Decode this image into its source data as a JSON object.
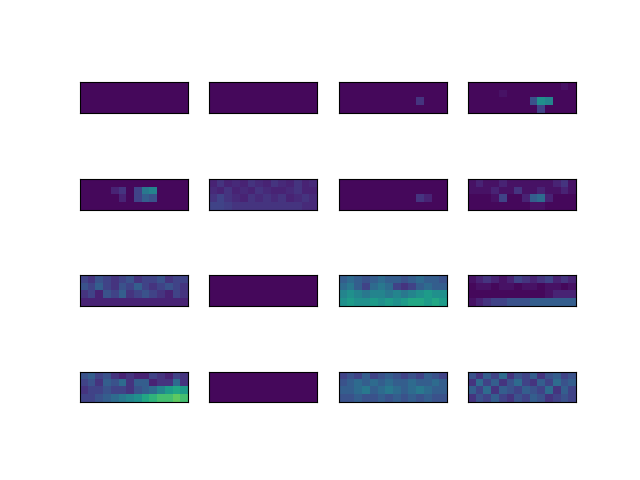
{
  "chart_data": [
    {
      "type": "heatmap",
      "tick_labels": false,
      "zlim": [
        0,
        1
      ],
      "cells": [
        [
          0.02,
          0.02,
          0.02,
          0.02,
          0.02,
          0.02,
          0.02,
          0.02,
          0.02,
          0.02,
          0.02,
          0.02,
          0.02,
          0.02
        ],
        [
          0.02,
          0.02,
          0.02,
          0.02,
          0.02,
          0.02,
          0.02,
          0.02,
          0.02,
          0.02,
          0.02,
          0.02,
          0.02,
          0.02
        ],
        [
          0.02,
          0.02,
          0.02,
          0.02,
          0.02,
          0.02,
          0.02,
          0.02,
          0.02,
          0.02,
          0.02,
          0.02,
          0.02,
          0.02
        ],
        [
          0.02,
          0.02,
          0.02,
          0.02,
          0.02,
          0.02,
          0.02,
          0.02,
          0.02,
          0.02,
          0.02,
          0.02,
          0.02,
          0.02
        ]
      ]
    },
    {
      "type": "heatmap",
      "tick_labels": false,
      "zlim": [
        0,
        1
      ],
      "cells": [
        [
          0.02,
          0.02,
          0.02,
          0.02,
          0.02,
          0.02,
          0.02,
          0.02,
          0.02,
          0.02,
          0.02,
          0.02,
          0.02,
          0.02
        ],
        [
          0.02,
          0.02,
          0.02,
          0.02,
          0.02,
          0.02,
          0.02,
          0.02,
          0.02,
          0.02,
          0.02,
          0.02,
          0.02,
          0.02
        ],
        [
          0.02,
          0.02,
          0.02,
          0.02,
          0.02,
          0.02,
          0.02,
          0.02,
          0.02,
          0.02,
          0.02,
          0.02,
          0.02,
          0.02
        ],
        [
          0.02,
          0.02,
          0.02,
          0.02,
          0.02,
          0.02,
          0.02,
          0.02,
          0.02,
          0.02,
          0.02,
          0.02,
          0.02,
          0.02
        ]
      ]
    },
    {
      "type": "heatmap",
      "tick_labels": false,
      "zlim": [
        0,
        1
      ],
      "cells": [
        [
          0.02,
          0.02,
          0.02,
          0.02,
          0.02,
          0.02,
          0.02,
          0.02,
          0.02,
          0.02,
          0.02,
          0.02,
          0.02,
          0.02
        ],
        [
          0.02,
          0.02,
          0.02,
          0.02,
          0.02,
          0.02,
          0.02,
          0.02,
          0.02,
          0.02,
          0.02,
          0.02,
          0.02,
          0.02
        ],
        [
          0.02,
          0.02,
          0.02,
          0.02,
          0.02,
          0.02,
          0.02,
          0.02,
          0.02,
          0.02,
          0.15,
          0.02,
          0.02,
          0.02
        ],
        [
          0.02,
          0.02,
          0.02,
          0.02,
          0.02,
          0.02,
          0.02,
          0.02,
          0.02,
          0.02,
          0.02,
          0.02,
          0.02,
          0.02
        ]
      ]
    },
    {
      "type": "heatmap",
      "tick_labels": false,
      "zlim": [
        0,
        1
      ],
      "cells": [
        [
          0.02,
          0.02,
          0.02,
          0.02,
          0.02,
          0.02,
          0.02,
          0.02,
          0.02,
          0.02,
          0.02,
          0.02,
          0.05,
          0.02
        ],
        [
          0.02,
          0.02,
          0.02,
          0.02,
          0.05,
          0.02,
          0.02,
          0.02,
          0.02,
          0.02,
          0.02,
          0.02,
          0.02,
          0.02
        ],
        [
          0.02,
          0.02,
          0.02,
          0.02,
          0.02,
          0.02,
          0.02,
          0.02,
          0.25,
          0.5,
          0.45,
          0.02,
          0.02,
          0.02
        ],
        [
          0.02,
          0.02,
          0.02,
          0.02,
          0.02,
          0.02,
          0.02,
          0.02,
          0.02,
          0.2,
          0.02,
          0.02,
          0.02,
          0.02
        ]
      ]
    },
    {
      "type": "heatmap",
      "tick_labels": false,
      "zlim": [
        0,
        1
      ],
      "cells": [
        [
          0.02,
          0.02,
          0.02,
          0.02,
          0.02,
          0.02,
          0.02,
          0.02,
          0.02,
          0.02,
          0.02,
          0.02,
          0.02,
          0.02
        ],
        [
          0.02,
          0.02,
          0.02,
          0.02,
          0.1,
          0.15,
          0.02,
          0.2,
          0.4,
          0.45,
          0.02,
          0.02,
          0.02,
          0.02
        ],
        [
          0.02,
          0.02,
          0.02,
          0.02,
          0.02,
          0.1,
          0.02,
          0.2,
          0.3,
          0.25,
          0.02,
          0.02,
          0.02,
          0.02
        ],
        [
          0.02,
          0.02,
          0.02,
          0.02,
          0.02,
          0.02,
          0.02,
          0.02,
          0.02,
          0.02,
          0.02,
          0.02,
          0.02,
          0.02
        ]
      ]
    },
    {
      "type": "heatmap",
      "tick_labels": false,
      "zlim": [
        0,
        1
      ],
      "cells": [
        [
          0.1,
          0.15,
          0.1,
          0.12,
          0.1,
          0.15,
          0.12,
          0.1,
          0.15,
          0.12,
          0.1,
          0.15,
          0.1,
          0.12
        ],
        [
          0.12,
          0.1,
          0.15,
          0.1,
          0.12,
          0.1,
          0.15,
          0.12,
          0.1,
          0.1,
          0.12,
          0.15,
          0.1,
          0.1
        ],
        [
          0.15,
          0.2,
          0.15,
          0.12,
          0.1,
          0.15,
          0.12,
          0.15,
          0.12,
          0.15,
          0.1,
          0.12,
          0.15,
          0.12
        ],
        [
          0.2,
          0.2,
          0.18,
          0.15,
          0.15,
          0.15,
          0.15,
          0.15,
          0.15,
          0.15,
          0.15,
          0.15,
          0.12,
          0.12
        ]
      ]
    },
    {
      "type": "heatmap",
      "tick_labels": false,
      "zlim": [
        0,
        1
      ],
      "cells": [
        [
          0.02,
          0.02,
          0.02,
          0.02,
          0.02,
          0.02,
          0.02,
          0.02,
          0.02,
          0.02,
          0.02,
          0.02,
          0.02,
          0.02
        ],
        [
          0.02,
          0.02,
          0.02,
          0.02,
          0.02,
          0.02,
          0.02,
          0.02,
          0.02,
          0.02,
          0.02,
          0.02,
          0.02,
          0.02
        ],
        [
          0.02,
          0.02,
          0.02,
          0.02,
          0.02,
          0.02,
          0.02,
          0.02,
          0.02,
          0.02,
          0.15,
          0.1,
          0.02,
          0.02
        ],
        [
          0.02,
          0.02,
          0.02,
          0.02,
          0.02,
          0.02,
          0.02,
          0.02,
          0.02,
          0.02,
          0.02,
          0.02,
          0.02,
          0.02
        ]
      ]
    },
    {
      "type": "heatmap",
      "tick_labels": false,
      "zlim": [
        0,
        1
      ],
      "cells": [
        [
          0.05,
          0.1,
          0.05,
          0.05,
          0.1,
          0.05,
          0.05,
          0.05,
          0.05,
          0.05,
          0.05,
          0.1,
          0.15,
          0.05
        ],
        [
          0.05,
          0.05,
          0.05,
          0.1,
          0.05,
          0.05,
          0.15,
          0.05,
          0.05,
          0.1,
          0.05,
          0.05,
          0.1,
          0.05
        ],
        [
          0.02,
          0.02,
          0.02,
          0.05,
          0.2,
          0.02,
          0.02,
          0.1,
          0.3,
          0.35,
          0.1,
          0.02,
          0.02,
          0.02
        ],
        [
          0.02,
          0.02,
          0.02,
          0.02,
          0.02,
          0.02,
          0.02,
          0.02,
          0.05,
          0.05,
          0.02,
          0.02,
          0.02,
          0.02
        ]
      ]
    },
    {
      "type": "heatmap",
      "tick_labels": false,
      "zlim": [
        0,
        1
      ],
      "cells": [
        [
          0.2,
          0.15,
          0.25,
          0.2,
          0.15,
          0.2,
          0.25,
          0.15,
          0.2,
          0.2,
          0.25,
          0.15,
          0.2,
          0.2
        ],
        [
          0.25,
          0.2,
          0.3,
          0.2,
          0.15,
          0.25,
          0.2,
          0.3,
          0.2,
          0.15,
          0.2,
          0.25,
          0.2,
          0.15
        ],
        [
          0.15,
          0.2,
          0.1,
          0.25,
          0.2,
          0.3,
          0.15,
          0.2,
          0.25,
          0.2,
          0.15,
          0.1,
          0.2,
          0.15
        ],
        [
          0.1,
          0.1,
          0.1,
          0.1,
          0.1,
          0.1,
          0.1,
          0.1,
          0.1,
          0.1,
          0.1,
          0.1,
          0.1,
          0.1
        ]
      ]
    },
    {
      "type": "heatmap",
      "tick_labels": false,
      "zlim": [
        0,
        1
      ],
      "cells": [
        [
          0.02,
          0.02,
          0.02,
          0.02,
          0.02,
          0.02,
          0.02,
          0.02,
          0.02,
          0.02,
          0.02,
          0.02,
          0.02,
          0.02
        ],
        [
          0.02,
          0.02,
          0.02,
          0.02,
          0.02,
          0.02,
          0.02,
          0.02,
          0.02,
          0.02,
          0.02,
          0.02,
          0.02,
          0.02
        ],
        [
          0.02,
          0.02,
          0.02,
          0.02,
          0.02,
          0.02,
          0.02,
          0.02,
          0.02,
          0.02,
          0.02,
          0.02,
          0.02,
          0.02
        ],
        [
          0.02,
          0.02,
          0.02,
          0.02,
          0.02,
          0.02,
          0.02,
          0.02,
          0.02,
          0.02,
          0.02,
          0.02,
          0.02,
          0.02
        ]
      ]
    },
    {
      "type": "heatmap",
      "tick_labels": false,
      "zlim": [
        0,
        1
      ],
      "cells": [
        [
          0.3,
          0.35,
          0.3,
          0.25,
          0.3,
          0.35,
          0.3,
          0.3,
          0.25,
          0.3,
          0.35,
          0.3,
          0.3,
          0.25
        ],
        [
          0.35,
          0.4,
          0.3,
          0.2,
          0.35,
          0.4,
          0.35,
          0.2,
          0.15,
          0.2,
          0.3,
          0.35,
          0.3,
          0.3
        ],
        [
          0.45,
          0.5,
          0.45,
          0.4,
          0.45,
          0.45,
          0.4,
          0.45,
          0.4,
          0.45,
          0.5,
          0.55,
          0.5,
          0.5
        ],
        [
          0.5,
          0.55,
          0.5,
          0.5,
          0.55,
          0.5,
          0.55,
          0.5,
          0.55,
          0.6,
          0.6,
          0.55,
          0.6,
          0.55
        ]
      ]
    },
    {
      "type": "heatmap",
      "tick_labels": false,
      "zlim": [
        0,
        1
      ],
      "cells": [
        [
          0.05,
          0.1,
          0.15,
          0.1,
          0.05,
          0.1,
          0.2,
          0.15,
          0.1,
          0.15,
          0.2,
          0.1,
          0.15,
          0.1
        ],
        [
          0.02,
          0.05,
          0.05,
          0.02,
          0.05,
          0.05,
          0.02,
          0.05,
          0.05,
          0.02,
          0.05,
          0.05,
          0.02,
          0.05
        ],
        [
          0.02,
          0.02,
          0.02,
          0.02,
          0.02,
          0.02,
          0.02,
          0.02,
          0.02,
          0.02,
          0.05,
          0.1,
          0.1,
          0.1
        ],
        [
          0.05,
          0.1,
          0.15,
          0.2,
          0.2,
          0.25,
          0.25,
          0.25,
          0.3,
          0.3,
          0.3,
          0.3,
          0.3,
          0.3
        ]
      ]
    },
    {
      "type": "heatmap",
      "tick_labels": false,
      "zlim": [
        0,
        1
      ],
      "cells": [
        [
          0.25,
          0.3,
          0.2,
          0.25,
          0.15,
          0.1,
          0.15,
          0.1,
          0.1,
          0.2,
          0.15,
          0.1,
          0.2,
          0.15
        ],
        [
          0.2,
          0.25,
          0.15,
          0.3,
          0.25,
          0.35,
          0.15,
          0.3,
          0.3,
          0.1,
          0.15,
          0.15,
          0.35,
          0.15
        ],
        [
          0.15,
          0.2,
          0.2,
          0.25,
          0.2,
          0.2,
          0.15,
          0.25,
          0.3,
          0.35,
          0.45,
          0.55,
          0.6,
          0.55
        ],
        [
          0.2,
          0.2,
          0.25,
          0.3,
          0.35,
          0.4,
          0.45,
          0.5,
          0.6,
          0.65,
          0.7,
          0.7,
          0.75,
          0.7
        ]
      ]
    },
    {
      "type": "heatmap",
      "tick_labels": false,
      "zlim": [
        0,
        1
      ],
      "cells": [
        [
          0.02,
          0.02,
          0.02,
          0.02,
          0.02,
          0.02,
          0.02,
          0.02,
          0.02,
          0.02,
          0.02,
          0.02,
          0.02,
          0.02
        ],
        [
          0.02,
          0.02,
          0.02,
          0.02,
          0.02,
          0.02,
          0.02,
          0.02,
          0.02,
          0.02,
          0.02,
          0.02,
          0.02,
          0.02
        ],
        [
          0.02,
          0.02,
          0.02,
          0.02,
          0.02,
          0.02,
          0.02,
          0.02,
          0.02,
          0.02,
          0.02,
          0.02,
          0.02,
          0.02
        ],
        [
          0.02,
          0.02,
          0.02,
          0.02,
          0.02,
          0.02,
          0.02,
          0.02,
          0.02,
          0.02,
          0.02,
          0.02,
          0.02,
          0.02
        ]
      ]
    },
    {
      "type": "heatmap",
      "tick_labels": false,
      "zlim": [
        0,
        1
      ],
      "cells": [
        [
          0.2,
          0.25,
          0.2,
          0.3,
          0.2,
          0.25,
          0.3,
          0.25,
          0.2,
          0.25,
          0.2,
          0.3,
          0.25,
          0.2
        ],
        [
          0.25,
          0.3,
          0.35,
          0.3,
          0.35,
          0.3,
          0.35,
          0.3,
          0.3,
          0.35,
          0.3,
          0.3,
          0.35,
          0.3
        ],
        [
          0.3,
          0.3,
          0.35,
          0.4,
          0.3,
          0.35,
          0.4,
          0.35,
          0.3,
          0.35,
          0.4,
          0.35,
          0.3,
          0.3
        ],
        [
          0.25,
          0.25,
          0.3,
          0.25,
          0.25,
          0.3,
          0.25,
          0.3,
          0.25,
          0.3,
          0.25,
          0.3,
          0.25,
          0.25
        ]
      ]
    },
    {
      "type": "heatmap",
      "tick_labels": false,
      "zlim": [
        0,
        1
      ],
      "cells": [
        [
          0.25,
          0.15,
          0.3,
          0.2,
          0.35,
          0.15,
          0.25,
          0.2,
          0.3,
          0.15,
          0.25,
          0.3,
          0.2,
          0.25
        ],
        [
          0.15,
          0.35,
          0.2,
          0.3,
          0.15,
          0.25,
          0.35,
          0.2,
          0.15,
          0.3,
          0.2,
          0.35,
          0.25,
          0.3
        ],
        [
          0.3,
          0.2,
          0.35,
          0.15,
          0.3,
          0.25,
          0.2,
          0.3,
          0.25,
          0.2,
          0.35,
          0.15,
          0.3,
          0.2
        ],
        [
          0.15,
          0.25,
          0.2,
          0.3,
          0.2,
          0.15,
          0.25,
          0.2,
          0.3,
          0.25,
          0.15,
          0.2,
          0.25,
          0.2
        ]
      ]
    }
  ]
}
